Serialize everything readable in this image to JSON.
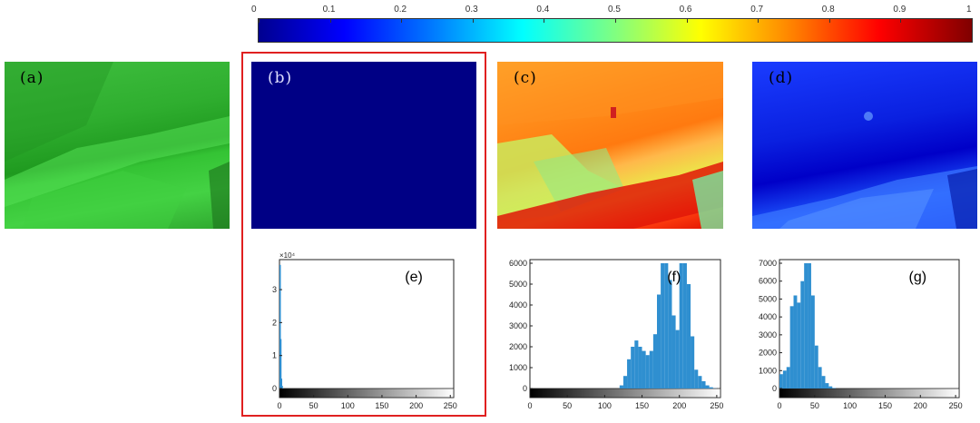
{
  "colorbar": {
    "ticks": [
      "0",
      "0.1",
      "0.2",
      "0.3",
      "0.4",
      "0.5",
      "0.6",
      "0.7",
      "0.8",
      "0.9",
      "1"
    ]
  },
  "panels": {
    "a": "(a)",
    "b": "(b)",
    "c": "(c)",
    "d": "(d)"
  },
  "chart_data": [
    {
      "type": "bar",
      "title": "(e)",
      "exponent_label": "×10⁴",
      "x_ticks": [
        "0",
        "50",
        "100",
        "150",
        "200",
        "250"
      ],
      "y_ticks": [
        "0",
        "1",
        "2",
        "3"
      ],
      "xlim": [
        0,
        255
      ],
      "ylim": [
        0,
        38000
      ],
      "x": [
        0,
        1,
        2,
        3,
        4
      ],
      "values": [
        37500,
        15000,
        3000,
        800,
        100
      ]
    },
    {
      "type": "bar",
      "title": "(f)",
      "x_ticks": [
        "0",
        "50",
        "100",
        "150",
        "200",
        "250"
      ],
      "y_ticks": [
        "0",
        "1000",
        "2000",
        "3000",
        "4000",
        "5000",
        "6000"
      ],
      "xlim": [
        0,
        255
      ],
      "ylim": [
        0,
        6000
      ],
      "x": [
        120,
        125,
        130,
        135,
        140,
        145,
        150,
        155,
        160,
        165,
        170,
        175,
        180,
        185,
        190,
        195,
        200,
        205,
        210,
        215,
        220,
        225,
        230,
        235,
        240,
        245
      ],
      "values": [
        150,
        600,
        1400,
        2000,
        2300,
        2000,
        1800,
        1600,
        1800,
        2600,
        4500,
        6000,
        6000,
        5200,
        3500,
        2800,
        6000,
        6000,
        5000,
        2500,
        900,
        600,
        350,
        150,
        60,
        10
      ]
    },
    {
      "type": "bar",
      "title": "(g)",
      "x_ticks": [
        "0",
        "50",
        "100",
        "150",
        "200",
        "250"
      ],
      "y_ticks": [
        "0",
        "1000",
        "2000",
        "3000",
        "4000",
        "5000",
        "6000",
        "7000"
      ],
      "xlim": [
        0,
        255
      ],
      "ylim": [
        0,
        7000
      ],
      "x": [
        0,
        5,
        10,
        15,
        20,
        25,
        30,
        35,
        40,
        45,
        50,
        55,
        60,
        65,
        70,
        75
      ],
      "values": [
        800,
        1000,
        1200,
        4600,
        5200,
        4800,
        6000,
        7000,
        7000,
        5200,
        2400,
        1200,
        700,
        300,
        120,
        30
      ]
    }
  ]
}
